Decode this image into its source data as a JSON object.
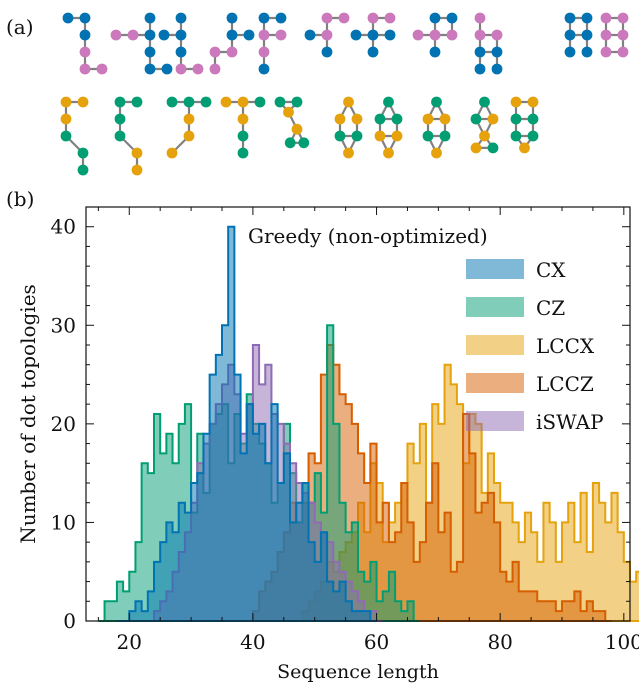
{
  "panel_a_label": "(a)",
  "panel_b_label": "(b)",
  "colors": {
    "blue": "#0173b2",
    "pink": "#cc78bc",
    "green": "#029e73",
    "yellow": "#e6a20c",
    "orange": "#d55e00",
    "purple": "#8e6bb4",
    "edge": "#808080"
  },
  "chart_data": {
    "type": "step-histogram",
    "annotation": "Greedy (non-optimized)",
    "xlabel": "Sequence length",
    "ylabel": "Number of dot topologies",
    "xlim": [
      13,
      101
    ],
    "ylim": [
      0,
      42
    ],
    "xticks": [
      20,
      40,
      60,
      80,
      100
    ],
    "yticks": [
      0,
      10,
      20,
      30,
      40
    ],
    "bin_width": 1,
    "legend_position": "top-right",
    "series": [
      {
        "name": "CX",
        "color": "#0173b2",
        "start": 18,
        "values": [
          0,
          0,
          1,
          2,
          1,
          3,
          6,
          8,
          10,
          9,
          12,
          11,
          14,
          15,
          19,
          25,
          27,
          30,
          40,
          25,
          17,
          22,
          19,
          20,
          16,
          22,
          14,
          17,
          10,
          12,
          14,
          8,
          6,
          9,
          4,
          3,
          4,
          2,
          1,
          1,
          1,
          0
        ]
      },
      {
        "name": "CZ",
        "color": "#029e73",
        "start": 15,
        "values": [
          0,
          2,
          2,
          4,
          3,
          5,
          8,
          16,
          15,
          21,
          17,
          19,
          16,
          20,
          22,
          11,
          19,
          13,
          20,
          21,
          22,
          16,
          21,
          18,
          23,
          20,
          18,
          16,
          12,
          14,
          20,
          15,
          10,
          14,
          12,
          15,
          11,
          30,
          20,
          12,
          9,
          10,
          5,
          4,
          6,
          2,
          3,
          5,
          2,
          1,
          2,
          0
        ]
      },
      {
        "name": "LCCX",
        "color": "#e6a20c",
        "start": 31,
        "values": [
          0,
          0,
          0,
          0,
          0,
          0,
          0,
          0,
          0,
          0,
          0,
          0,
          0,
          0,
          0,
          0,
          0,
          1,
          2,
          3,
          4,
          6,
          5,
          7,
          8,
          9,
          12,
          9,
          16,
          14,
          8,
          10,
          12,
          14,
          18,
          16,
          20,
          12,
          22,
          20,
          26,
          24,
          22,
          16,
          21,
          20,
          13,
          17,
          14,
          12,
          12,
          10,
          8,
          11,
          9,
          6,
          12,
          10,
          6,
          10,
          12,
          8,
          13,
          7,
          14,
          12,
          10,
          13,
          9,
          6,
          4,
          5,
          3,
          3,
          3,
          2,
          2,
          1,
          1,
          0
        ]
      },
      {
        "name": "LCCZ",
        "color": "#d55e00",
        "start": 35,
        "values": [
          0,
          0,
          0,
          0,
          0,
          1,
          3,
          4,
          5,
          7,
          9,
          12,
          10,
          12,
          17,
          16,
          25,
          28,
          26,
          23,
          22,
          20,
          17,
          14,
          18,
          10,
          12,
          8,
          9,
          14,
          10,
          6,
          8,
          12,
          16,
          9,
          11,
          5,
          6,
          21,
          17,
          11,
          12,
          13,
          10,
          5,
          4,
          6,
          3,
          3,
          3,
          2,
          2,
          2,
          1,
          2,
          2,
          3,
          1,
          2,
          1,
          1,
          0
        ]
      },
      {
        "name": "iSWAP",
        "color": "#8e6bb4",
        "start": 22,
        "values": [
          0,
          0,
          1,
          2,
          3,
          5,
          7,
          9,
          12,
          16,
          18,
          20,
          22,
          24,
          26,
          23,
          19,
          22,
          28,
          24,
          26,
          21,
          20,
          18,
          16,
          14,
          13,
          12,
          10,
          9,
          8,
          6,
          5,
          4,
          3,
          2,
          1,
          1,
          0
        ]
      }
    ]
  }
}
